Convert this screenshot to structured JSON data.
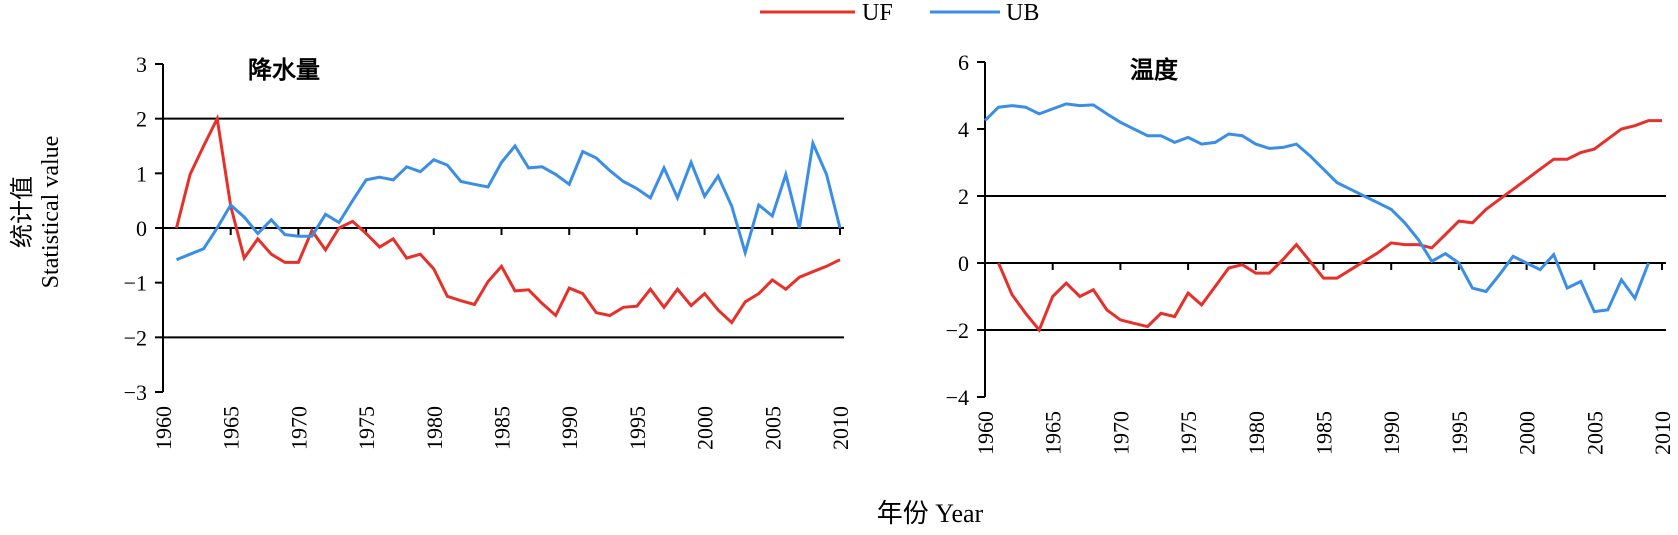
{
  "legend": [
    {
      "name": "UF",
      "color": "#e8302a"
    },
    {
      "name": "UB",
      "color": "#3a8ee6"
    }
  ],
  "y_axis_label_cn": "统计值",
  "y_axis_label_en": "Statistical value",
  "x_axis_label": "年份 Year",
  "chart_data": [
    {
      "type": "line",
      "title": "降水量",
      "xlim": [
        1960,
        2010
      ],
      "ylim": [
        -3,
        3
      ],
      "yticks": [
        -3,
        -2,
        -1,
        0,
        1,
        2,
        3
      ],
      "ytick_labels": [
        "−3",
        "−2",
        "−1",
        "0",
        "1",
        "2",
        "3"
      ],
      "xticks": [
        1960,
        1965,
        1970,
        1975,
        1980,
        1985,
        1990,
        1995,
        2000,
        2005,
        2010
      ],
      "xtick_labels": [
        "1960",
        "1965",
        "1970",
        "1975",
        "1980",
        "1985",
        "1990",
        "1995",
        "2000",
        "2005",
        "2010"
      ],
      "reference_lines": [
        2,
        0,
        -2
      ],
      "series": [
        {
          "name": "UF",
          "color": "#e8302a",
          "x": [
            1961,
            1962,
            1963,
            1964,
            1965,
            1966,
            1967,
            1968,
            1969,
            1970,
            1971,
            1972,
            1973,
            1974,
            1975,
            1976,
            1977,
            1978,
            1979,
            1980,
            1981,
            1982,
            1983,
            1984,
            1985,
            1986,
            1987,
            1988,
            1989,
            1990,
            1991,
            1992,
            1993,
            1994,
            1995,
            1996,
            1997,
            1998,
            1999,
            2000,
            2001,
            2002,
            2003,
            2004,
            2005,
            2006,
            2007,
            2008,
            2009,
            2010
          ],
          "y": [
            0,
            0.98,
            1.5,
            2.0,
            0.4,
            -0.55,
            -0.2,
            -0.48,
            -0.63,
            -0.63,
            -0.05,
            -0.4,
            0,
            0.12,
            -0.1,
            -0.35,
            -0.2,
            -0.55,
            -0.48,
            -0.75,
            -1.25,
            -1.33,
            -1.4,
            -0.98,
            -0.7,
            -1.15,
            -1.13,
            -1.38,
            -1.6,
            -1.1,
            -1.2,
            -1.55,
            -1.6,
            -1.45,
            -1.43,
            -1.12,
            -1.45,
            -1.12,
            -1.42,
            -1.2,
            -1.5,
            -1.73,
            -1.35,
            -1.2,
            -0.95,
            -1.12,
            -0.9,
            -0.8,
            -0.7,
            -0.58
          ]
        },
        {
          "name": "UB",
          "color": "#3a8ee6",
          "x": [
            1961,
            1962,
            1963,
            1964,
            1965,
            1966,
            1967,
            1968,
            1969,
            1970,
            1971,
            1972,
            1973,
            1974,
            1975,
            1976,
            1977,
            1978,
            1979,
            1980,
            1981,
            1982,
            1983,
            1984,
            1985,
            1986,
            1987,
            1988,
            1989,
            1990,
            1991,
            1992,
            1993,
            1994,
            1995,
            1996,
            1997,
            1998,
            1999,
            2000,
            2001,
            2002,
            2003,
            2004,
            2005,
            2006,
            2007,
            2008,
            2009,
            2010
          ],
          "y": [
            -0.58,
            -0.48,
            -0.38,
            0,
            0.42,
            0.2,
            -0.1,
            0.15,
            -0.12,
            -0.15,
            -0.15,
            0.25,
            0.1,
            0.5,
            0.88,
            0.93,
            0.88,
            1.12,
            1.03,
            1.25,
            1.15,
            0.85,
            0.8,
            0.75,
            1.2,
            1.5,
            1.1,
            1.12,
            0.98,
            0.8,
            1.4,
            1.28,
            1.05,
            0.85,
            0.72,
            0.55,
            1.1,
            0.55,
            1.2,
            0.58,
            0.95,
            0.4,
            -0.45,
            0.42,
            0.22,
            0.98,
            0,
            1.55,
            0.98,
            0
          ]
        }
      ]
    },
    {
      "type": "line",
      "title": "温度",
      "xlim": [
        1960,
        2010
      ],
      "ylim": [
        -4,
        6
      ],
      "yticks": [
        -4,
        -2,
        0,
        2,
        4,
        6
      ],
      "ytick_labels": [
        "−4",
        "−2",
        "0",
        "2",
        "4",
        "6"
      ],
      "xticks": [
        1960,
        1965,
        1970,
        1975,
        1980,
        1985,
        1990,
        1995,
        2000,
        2005,
        2010
      ],
      "xtick_labels": [
        "1960",
        "1965",
        "1970",
        "1975",
        "1980",
        "1985",
        "1990",
        "1995",
        "2000",
        "2005",
        "2010"
      ],
      "reference_lines": [
        2,
        0,
        -2
      ],
      "series": [
        {
          "name": "UF",
          "color": "#e8302a",
          "x": [
            1961,
            1962,
            1963,
            1964,
            1965,
            1966,
            1967,
            1968,
            1969,
            1970,
            1971,
            1972,
            1973,
            1974,
            1975,
            1976,
            1977,
            1978,
            1979,
            1980,
            1981,
            1982,
            1983,
            1984,
            1985,
            1986,
            1987,
            1988,
            1989,
            1990,
            1991,
            1992,
            1993,
            1994,
            1995,
            1996,
            1997,
            1998,
            1999,
            2000,
            2001,
            2002,
            2003,
            2004,
            2005,
            2006,
            2007,
            2008,
            2009,
            2010
          ],
          "y": [
            0,
            -0.95,
            -1.5,
            -2.0,
            -1.0,
            -0.6,
            -1.0,
            -0.8,
            -1.4,
            -1.7,
            -1.8,
            -1.9,
            -1.5,
            -1.6,
            -0.9,
            -1.25,
            -0.7,
            -0.15,
            -0.05,
            -0.3,
            -0.3,
            0.1,
            0.55,
            0.05,
            -0.45,
            -0.45,
            -0.2,
            0.05,
            0.3,
            0.6,
            0.55,
            0.55,
            0.45,
            0.85,
            1.25,
            1.2,
            1.6,
            1.9,
            2.2,
            2.5,
            2.8,
            3.1,
            3.1,
            3.3,
            3.4,
            3.7,
            4.0,
            4.1,
            4.25,
            4.25
          ]
        },
        {
          "name": "UB",
          "color": "#3a8ee6",
          "x": [
            1960,
            1961,
            1962,
            1963,
            1964,
            1965,
            1966,
            1967,
            1968,
            1969,
            1970,
            1971,
            1972,
            1973,
            1974,
            1975,
            1976,
            1977,
            1978,
            1979,
            1980,
            1981,
            1982,
            1983,
            1984,
            1985,
            1986,
            1987,
            1988,
            1989,
            1990,
            1991,
            1992,
            1993,
            1994,
            1995,
            1996,
            1997,
            1998,
            1999,
            2000,
            2001,
            2002,
            2003,
            2004,
            2005,
            2006,
            2007,
            2008,
            2009
          ],
          "y": [
            4.25,
            4.65,
            4.7,
            4.65,
            4.45,
            4.6,
            4.75,
            4.7,
            4.72,
            4.45,
            4.2,
            4.0,
            3.8,
            3.8,
            3.6,
            3.75,
            3.55,
            3.6,
            3.85,
            3.8,
            3.55,
            3.42,
            3.45,
            3.55,
            3.2,
            2.8,
            2.4,
            2.2,
            2.0,
            1.8,
            1.6,
            1.2,
            0.7,
            0.05,
            0.28,
            0,
            -0.75,
            -0.85,
            -0.35,
            0.2,
            0,
            -0.2,
            0.25,
            -0.75,
            -0.55,
            -1.45,
            -1.4,
            -0.5,
            -1.05,
            0
          ]
        }
      ]
    }
  ]
}
